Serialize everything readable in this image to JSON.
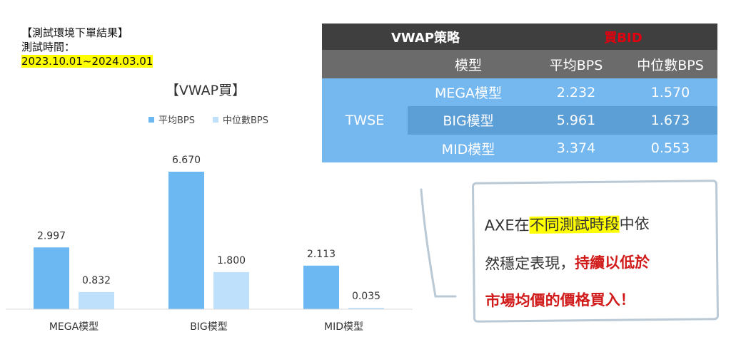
{
  "info": {
    "title": "【測試環境下單結果】",
    "period_label": "測試時間：",
    "period_value": "2023.10.01~2024.03.01"
  },
  "chart_data": {
    "type": "bar",
    "title": "【VWAP買】",
    "categories": [
      "MEGA模型",
      "BIG模型",
      "MID模型"
    ],
    "series": [
      {
        "name": "平均BPS",
        "values": [
          2.997,
          6.67,
          2.113
        ],
        "labels": [
          "2.997",
          "6.670",
          "2.113"
        ],
        "color": "#6bb8f2"
      },
      {
        "name": "中位數BPS",
        "values": [
          0.832,
          1.8,
          0.035
        ],
        "labels": [
          "0.832",
          "1.800",
          "0.035"
        ],
        "color": "#bfe0fa"
      }
    ],
    "ylim": [
      0,
      7.5
    ],
    "legend_position": "top",
    "grid": false
  },
  "table": {
    "strategy": "VWAP策略",
    "side": "買BID",
    "headers": [
      "模型",
      "平均BPS",
      "中位數BPS"
    ],
    "market": "TWSE",
    "rows": [
      {
        "model": "MEGA模型",
        "avg": "2.232",
        "median": "1.570"
      },
      {
        "model": "BIG模型",
        "avg": "5.961",
        "median": "1.673"
      },
      {
        "model": "MID模型",
        "avg": "3.374",
        "median": "0.553"
      }
    ],
    "colors": {
      "head_dark": "#3f3f3f",
      "head_mid": "#6b6b6b",
      "body": "#75b8f0",
      "body_alt": "#5b9fd6",
      "side_red": "#e3000f"
    }
  },
  "note": {
    "line1_a": "AXE在",
    "line1_hl": "不同測試時段",
    "line1_b": "中依",
    "line2_a": "然穩定表現，",
    "line2_red": "持續以低於",
    "line3_red": "市場均價的價格買入！"
  }
}
